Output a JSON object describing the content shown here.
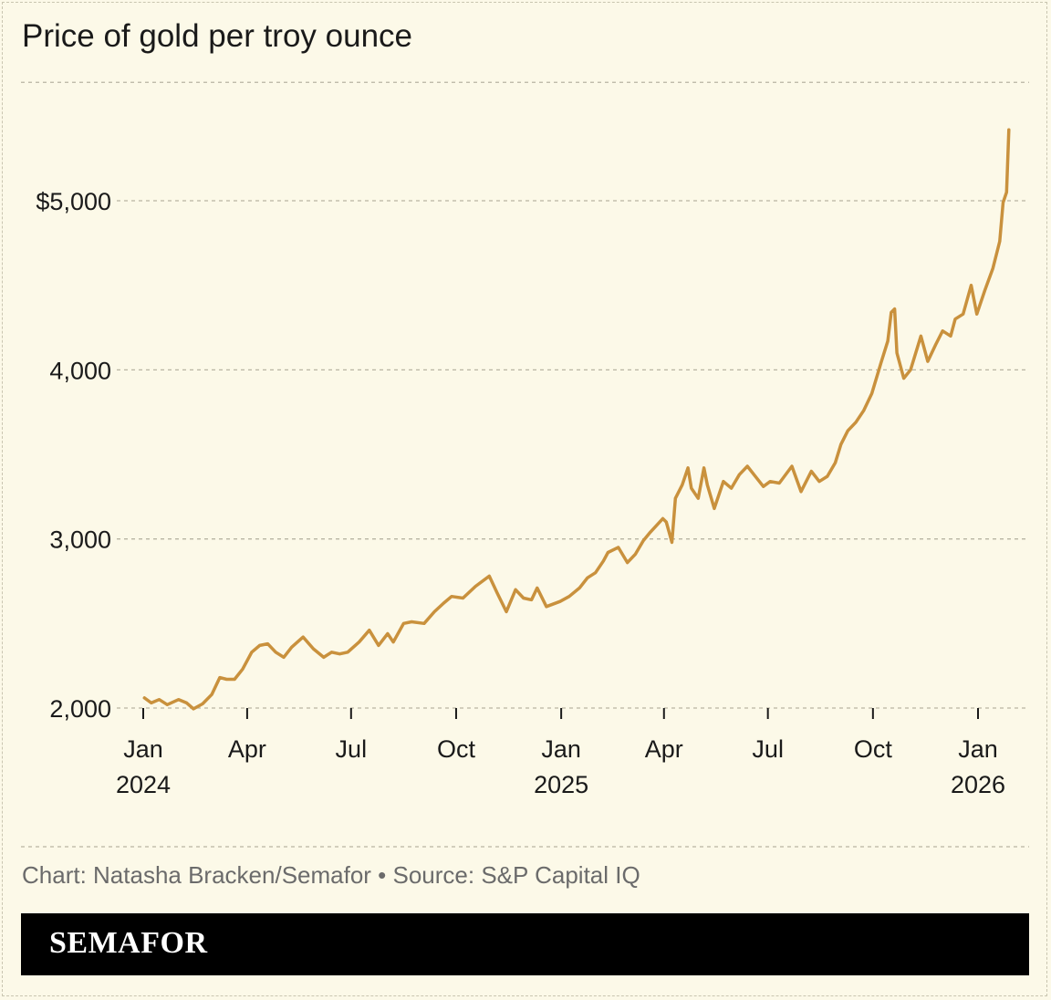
{
  "chart_data": {
    "type": "line",
    "title": "Price of gold per troy ounce",
    "xlabel": "",
    "ylabel": "",
    "ylim": [
      2000,
      5700
    ],
    "y_ticks": [
      2000,
      3000,
      4000,
      5000
    ],
    "y_tick_labels": [
      "2,000",
      "3,000",
      "4,000",
      "$5,000"
    ],
    "x_ticks": [
      {
        "date": "2024-01-01",
        "label": "Jan",
        "year": "2024"
      },
      {
        "date": "2024-04-01",
        "label": "Apr",
        "year": ""
      },
      {
        "date": "2024-07-01",
        "label": "Jul",
        "year": ""
      },
      {
        "date": "2024-10-01",
        "label": "Oct",
        "year": ""
      },
      {
        "date": "2025-01-01",
        "label": "Jan",
        "year": "2025"
      },
      {
        "date": "2025-04-01",
        "label": "Apr",
        "year": ""
      },
      {
        "date": "2025-07-01",
        "label": "Jul",
        "year": ""
      },
      {
        "date": "2025-10-01",
        "label": "Oct",
        "year": ""
      },
      {
        "date": "2026-01-01",
        "label": "Jan",
        "year": "2026"
      }
    ],
    "grid": "horizontal dashed",
    "line_color": "#c9913d",
    "x": [
      "2024-01-02",
      "2024-01-08",
      "2024-01-15",
      "2024-01-22",
      "2024-02-01",
      "2024-02-08",
      "2024-02-14",
      "2024-02-22",
      "2024-03-01",
      "2024-03-08",
      "2024-03-14",
      "2024-03-21",
      "2024-03-28",
      "2024-04-05",
      "2024-04-12",
      "2024-04-19",
      "2024-04-26",
      "2024-05-03",
      "2024-05-10",
      "2024-05-20",
      "2024-05-29",
      "2024-06-07",
      "2024-06-14",
      "2024-06-21",
      "2024-06-28",
      "2024-07-08",
      "2024-07-17",
      "2024-07-25",
      "2024-08-02",
      "2024-08-07",
      "2024-08-16",
      "2024-08-23",
      "2024-09-03",
      "2024-09-12",
      "2024-09-20",
      "2024-09-27",
      "2024-10-07",
      "2024-10-18",
      "2024-10-30",
      "2024-11-06",
      "2024-11-14",
      "2024-11-22",
      "2024-11-29",
      "2024-12-06",
      "2024-12-11",
      "2024-12-19",
      "2024-12-31",
      "2025-01-08",
      "2025-01-17",
      "2025-01-24",
      "2025-01-31",
      "2025-02-07",
      "2025-02-11",
      "2025-02-20",
      "2025-02-28",
      "2025-03-07",
      "2025-03-14",
      "2025-03-20",
      "2025-03-31",
      "2025-04-03",
      "2025-04-08",
      "2025-04-11",
      "2025-04-17",
      "2025-04-22",
      "2025-04-25",
      "2025-05-01",
      "2025-05-06",
      "2025-05-09",
      "2025-05-15",
      "2025-05-23",
      "2025-05-30",
      "2025-06-06",
      "2025-06-13",
      "2025-06-20",
      "2025-06-27",
      "2025-07-03",
      "2025-07-11",
      "2025-07-22",
      "2025-07-30",
      "2025-08-08",
      "2025-08-15",
      "2025-08-22",
      "2025-08-29",
      "2025-09-03",
      "2025-09-09",
      "2025-09-16",
      "2025-09-23",
      "2025-09-30",
      "2025-10-08",
      "2025-10-14",
      "2025-10-17",
      "2025-10-20",
      "2025-10-22",
      "2025-10-28",
      "2025-11-03",
      "2025-11-12",
      "2025-11-18",
      "2025-11-25",
      "2025-12-01",
      "2025-12-08",
      "2025-12-12",
      "2025-12-19",
      "2025-12-26",
      "2025-12-31",
      "2026-01-07",
      "2026-01-14",
      "2026-01-20",
      "2026-01-23",
      "2026-01-26",
      "2026-01-28"
    ],
    "y": [
      2060,
      2030,
      2050,
      2020,
      2050,
      2030,
      1995,
      2025,
      2080,
      2180,
      2170,
      2170,
      2230,
      2330,
      2370,
      2380,
      2330,
      2300,
      2360,
      2420,
      2350,
      2300,
      2330,
      2320,
      2330,
      2390,
      2460,
      2370,
      2440,
      2390,
      2500,
      2510,
      2500,
      2570,
      2620,
      2660,
      2650,
      2720,
      2780,
      2680,
      2570,
      2700,
      2650,
      2640,
      2710,
      2600,
      2630,
      2660,
      2710,
      2770,
      2800,
      2870,
      2920,
      2950,
      2860,
      2910,
      2990,
      3040,
      3120,
      3100,
      2980,
      3240,
      3320,
      3420,
      3300,
      3240,
      3420,
      3320,
      3180,
      3340,
      3300,
      3380,
      3430,
      3370,
      3310,
      3340,
      3330,
      3430,
      3280,
      3400,
      3340,
      3370,
      3450,
      3560,
      3640,
      3690,
      3760,
      3860,
      4040,
      4170,
      4340,
      4360,
      4100,
      3950,
      4000,
      4200,
      4050,
      4150,
      4230,
      4200,
      4300,
      4330,
      4500,
      4330,
      4470,
      4600,
      4760,
      4990,
      5050,
      5420
    ]
  },
  "footer": {
    "credit": "Chart: Natasha Bracken/Semafor • Source: S&P Capital IQ",
    "brand": "SEMAFOR"
  }
}
